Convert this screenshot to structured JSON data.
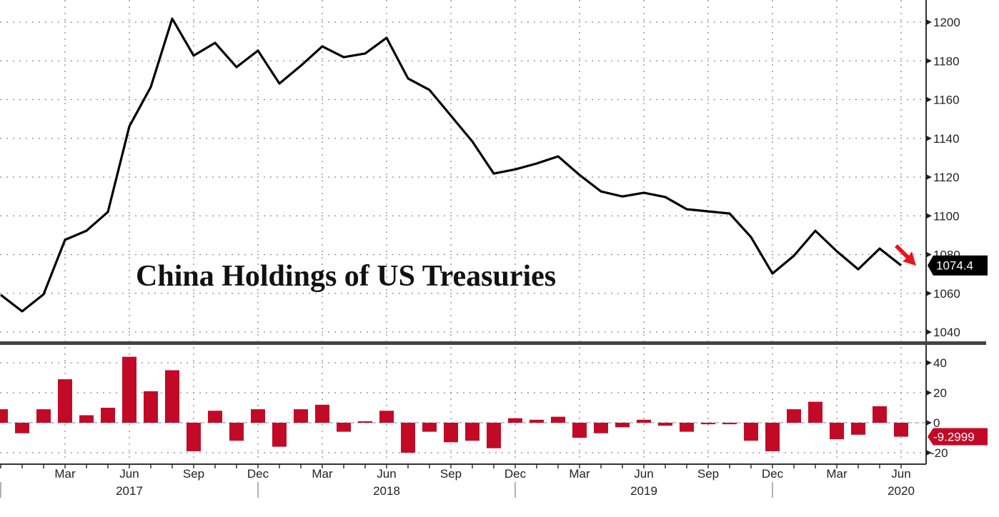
{
  "chart_data": [
    {
      "type": "line",
      "title": "China Holdings of US Treasuries",
      "x": [
        "2016-12",
        "2017-01",
        "2017-02",
        "2017-03",
        "2017-04",
        "2017-05",
        "2017-06",
        "2017-07",
        "2017-08",
        "2017-09",
        "2017-10",
        "2017-11",
        "2017-12",
        "2018-01",
        "2018-02",
        "2018-03",
        "2018-04",
        "2018-05",
        "2018-06",
        "2018-07",
        "2018-08",
        "2018-09",
        "2018-10",
        "2018-11",
        "2018-12",
        "2019-01",
        "2019-02",
        "2019-03",
        "2019-04",
        "2019-05",
        "2019-06",
        "2019-07",
        "2019-08",
        "2019-09",
        "2019-10",
        "2019-11",
        "2019-12",
        "2020-01",
        "2020-02",
        "2020-03",
        "2020-04",
        "2020-05",
        "2020-06"
      ],
      "values": [
        1059.2,
        1050.7,
        1059.5,
        1087.6,
        1092.3,
        1102,
        1146.2,
        1166.5,
        1201.8,
        1182.7,
        1189.3,
        1176.8,
        1185.3,
        1168.3,
        1177.5,
        1187.5,
        1181.9,
        1183.8,
        1191.9,
        1170.9,
        1165,
        1151.7,
        1138.4,
        1121.8,
        1124,
        1127,
        1130.7,
        1121.1,
        1112.6,
        1110,
        1111.9,
        1109.7,
        1103.4,
        1102.3,
        1101.2,
        1089,
        1070.2,
        1079.4,
        1092.3,
        1081.7,
        1072.4,
        1083.1,
        1074.4
      ],
      "ylim": [
        1035,
        1210
      ],
      "yticks": [
        "1040",
        "1060",
        "1080",
        "1100",
        "1120",
        "1140",
        "1160",
        "1180",
        "1200"
      ],
      "last_value_label": "1074.4",
      "line_color": "#000000",
      "grid": true,
      "arrow_color": "#e8141e"
    },
    {
      "type": "bar",
      "x": [
        "2016-12",
        "2017-01",
        "2017-02",
        "2017-03",
        "2017-04",
        "2017-05",
        "2017-06",
        "2017-07",
        "2017-08",
        "2017-09",
        "2017-10",
        "2017-11",
        "2017-12",
        "2018-01",
        "2018-02",
        "2018-03",
        "2018-04",
        "2018-05",
        "2018-06",
        "2018-07",
        "2018-08",
        "2018-09",
        "2018-10",
        "2018-11",
        "2018-12",
        "2019-01",
        "2019-02",
        "2019-03",
        "2019-04",
        "2019-05",
        "2019-06",
        "2019-07",
        "2019-08",
        "2019-09",
        "2019-10",
        "2019-11",
        "2019-12",
        "2020-01",
        "2020-02",
        "2020-03",
        "2020-04",
        "2020-05",
        "2020-06"
      ],
      "values": [
        9,
        -7,
        9,
        29,
        5,
        10,
        44,
        21,
        35,
        -19,
        8,
        -12,
        9,
        -16,
        9,
        12,
        -6,
        1,
        8,
        -20,
        -6,
        -13,
        -12,
        -17,
        3,
        2,
        4,
        -10,
        -7,
        -3,
        2,
        -2,
        -6,
        -1,
        -1,
        -12,
        -19,
        9,
        14,
        -11,
        -8,
        11,
        -9.2999
      ],
      "ylim": [
        -25,
        52
      ],
      "yticks": [
        "-20",
        "0",
        "20",
        "40"
      ],
      "last_value_label": "-9.2999",
      "bar_color": "#c20a26",
      "grid": true
    }
  ],
  "x_axis": {
    "month_labels": [
      "Mar",
      "Jun",
      "Sep",
      "Dec",
      "Mar",
      "Jun",
      "Sep",
      "Dec",
      "Mar",
      "Jun",
      "Sep",
      "Dec",
      "Mar",
      "Jun"
    ],
    "year_labels": [
      "2017",
      "2018",
      "2019",
      "2020"
    ]
  }
}
